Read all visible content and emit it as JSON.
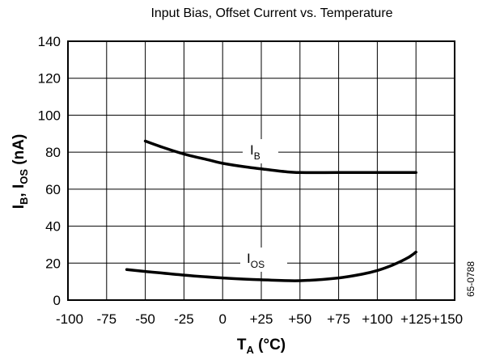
{
  "chart_data": {
    "type": "line",
    "title": "Input Bias, Offset Current vs. Temperature",
    "xlabel": {
      "main": "T",
      "sub": "A",
      "rest": " (°C)"
    },
    "ylabel": {
      "p1": "I",
      "s1": "B",
      "p2": ", I",
      "s2": "OS",
      "p3": " (nA)"
    },
    "xlim": [
      -100,
      150
    ],
    "ylim": [
      0,
      140
    ],
    "x_ticks": [
      {
        "value": -100,
        "label": "-100"
      },
      {
        "value": -75,
        "label": "-75"
      },
      {
        "value": -50,
        "label": "-50"
      },
      {
        "value": -25,
        "label": "-25"
      },
      {
        "value": 0,
        "label": "0"
      },
      {
        "value": 25,
        "label": "+25"
      },
      {
        "value": 50,
        "label": "+50"
      },
      {
        "value": 75,
        "label": "+75"
      },
      {
        "value": 100,
        "label": "+100"
      },
      {
        "value": 125,
        "label": "+125"
      },
      {
        "value": 150,
        "label": "+150"
      }
    ],
    "y_ticks": [
      {
        "value": 0,
        "label": "0"
      },
      {
        "value": 20,
        "label": "20"
      },
      {
        "value": 40,
        "label": "40"
      },
      {
        "value": 60,
        "label": "60"
      },
      {
        "value": 80,
        "label": "80"
      },
      {
        "value": 100,
        "label": "100"
      },
      {
        "value": 120,
        "label": "120"
      },
      {
        "value": 140,
        "label": "140"
      }
    ],
    "grid": true,
    "series": [
      {
        "label_main": "I",
        "label_sub": "B",
        "color": "#000000",
        "points": [
          [
            -50,
            86
          ],
          [
            -40,
            83
          ],
          [
            -25,
            79
          ],
          [
            -10,
            76
          ],
          [
            0,
            74
          ],
          [
            15,
            72
          ],
          [
            25,
            71
          ],
          [
            40,
            69.5
          ],
          [
            50,
            69
          ],
          [
            75,
            69
          ],
          [
            100,
            69
          ],
          [
            125,
            69
          ]
        ]
      },
      {
        "label_main": "I",
        "label_sub": "OS",
        "color": "#000000",
        "points": [
          [
            -62,
            16.5
          ],
          [
            -50,
            15.5
          ],
          [
            -25,
            13.5
          ],
          [
            0,
            12
          ],
          [
            25,
            11
          ],
          [
            50,
            10.5
          ],
          [
            75,
            12
          ],
          [
            90,
            14
          ],
          [
            100,
            16
          ],
          [
            110,
            19
          ],
          [
            120,
            23
          ],
          [
            125,
            26
          ]
        ]
      }
    ],
    "side_note": "65-0788"
  }
}
